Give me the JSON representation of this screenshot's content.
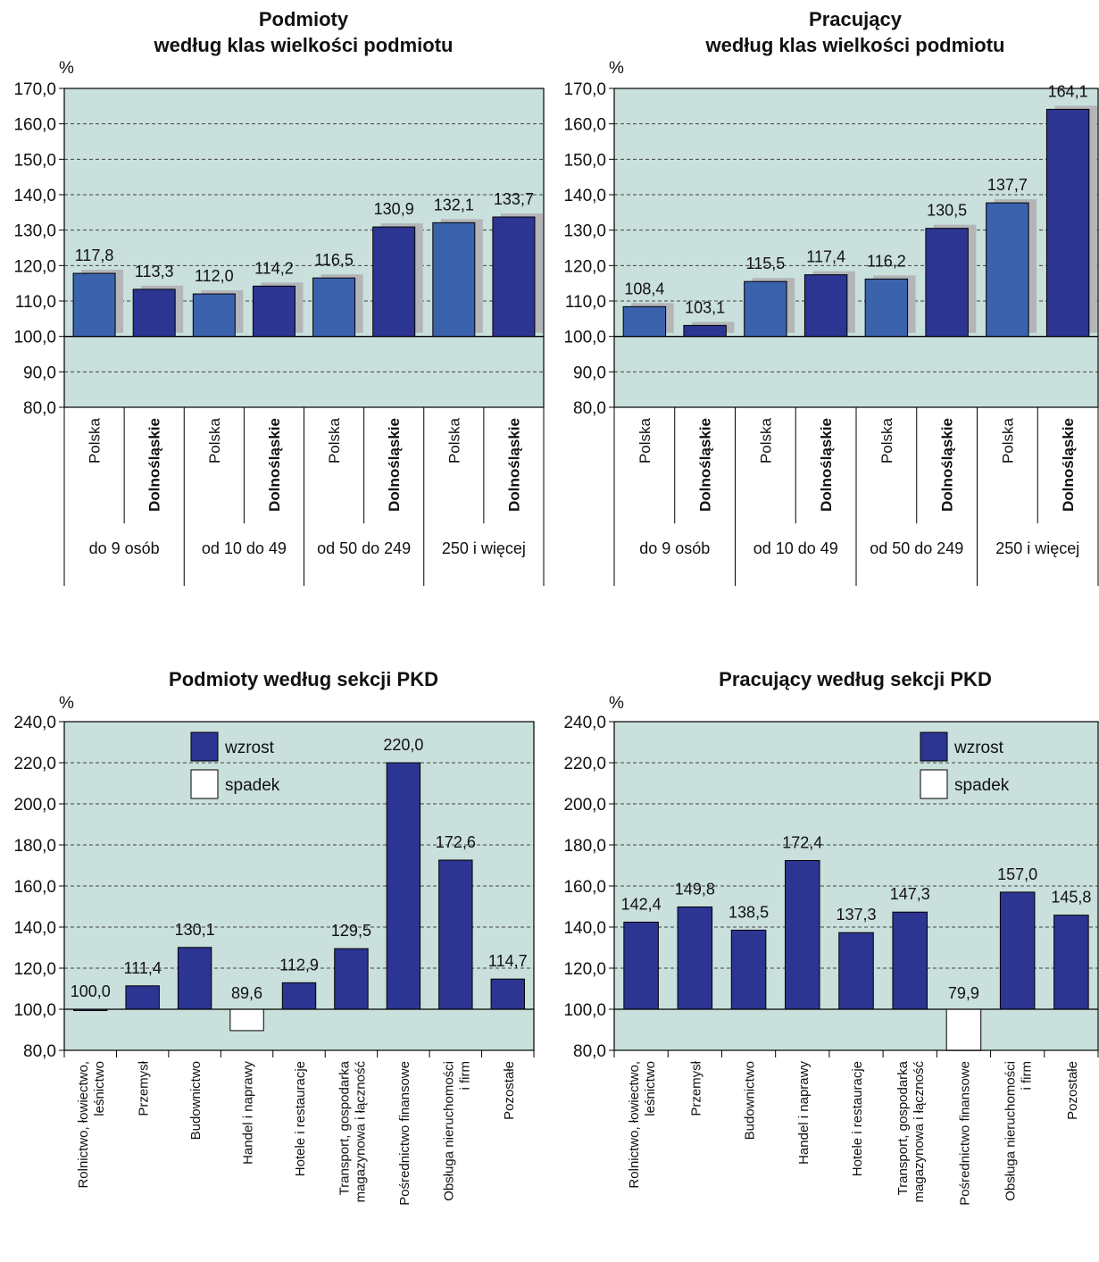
{
  "colors": {
    "panel": "#c9e0dc",
    "polska": "#3b62ad",
    "dolnoslaskie": "#2c3592",
    "shadow": "#b3b5b8",
    "spadek": "#ffffff"
  },
  "chart_data": [
    {
      "type": "bar",
      "title": [
        "Podmioty",
        "według klas wielkości podmiotu"
      ],
      "unit": "%",
      "ylim": [
        80,
        170
      ],
      "yticks": [
        "80,0",
        "90,0",
        "100,0",
        "110,0",
        "120,0",
        "130,0",
        "140,0",
        "150,0",
        "160,0",
        "170,0"
      ],
      "baseline": 100,
      "grid": true,
      "groups": [
        "do 9 osób",
        "od 10 do 49",
        "od 50 do 249",
        "250 i więcej"
      ],
      "series": [
        {
          "name": "Polska",
          "values": [
            117.8,
            112.0,
            116.5,
            132.1
          ],
          "labels": [
            "117,8",
            "112,0",
            "116,5",
            "132,1"
          ]
        },
        {
          "name": "Dolnośląskie",
          "values": [
            113.3,
            114.2,
            130.9,
            133.7
          ],
          "labels": [
            "113,3",
            "114,2",
            "130,9",
            "133,7"
          ]
        }
      ]
    },
    {
      "type": "bar",
      "title": [
        "Pracujący",
        "według klas wielkości podmiotu"
      ],
      "unit": "%",
      "ylim": [
        80,
        170
      ],
      "yticks": [
        "80,0",
        "90,0",
        "100,0",
        "110,0",
        "120,0",
        "130,0",
        "140,0",
        "150,0",
        "160,0",
        "170,0"
      ],
      "baseline": 100,
      "grid": true,
      "groups": [
        "do 9 osób",
        "od 10 do 49",
        "od 50 do 249",
        "250 i więcej"
      ],
      "series": [
        {
          "name": "Polska",
          "values": [
            108.4,
            115.5,
            116.2,
            137.7
          ],
          "labels": [
            "108,4",
            "115,5",
            "116,2",
            "137,7"
          ]
        },
        {
          "name": "Dolnośląskie",
          "values": [
            103.1,
            117.4,
            130.5,
            164.1
          ],
          "labels": [
            "103,1",
            "117,4",
            "130,5",
            "164,1"
          ]
        }
      ]
    },
    {
      "type": "bar",
      "title": [
        "Podmioty według sekcji PKD"
      ],
      "unit": "%",
      "ylim": [
        80,
        240
      ],
      "yticks": [
        "80,0",
        "100,0",
        "120,0",
        "140,0",
        "160,0",
        "180,0",
        "200,0",
        "220,0",
        "240,0"
      ],
      "baseline": 100,
      "grid": true,
      "legend": {
        "placement": "top-center",
        "items": [
          "wzrost",
          "spadek"
        ]
      },
      "categories": [
        [
          "Rolnictwo, łowiectwo,",
          "leśnictwo"
        ],
        [
          "Przemysł"
        ],
        [
          "Budownictwo"
        ],
        [
          "Handel i naprawy"
        ],
        [
          "Hotele i restauracje"
        ],
        [
          "Transport, gospodarka",
          "magazynowa i łączność"
        ],
        [
          "Pośrednictwo finansowe"
        ],
        [
          "Obsługa nieruchomości",
          "i firm"
        ],
        [
          "Pozostałe"
        ]
      ],
      "values": [
        100.0,
        111.4,
        130.1,
        89.6,
        112.9,
        129.5,
        220.0,
        172.6,
        114.7
      ],
      "labels": [
        "100,0",
        "111,4",
        "130,1",
        "89,6",
        "112,9",
        "129,5",
        "220,0",
        "172,6",
        "114,7"
      ]
    },
    {
      "type": "bar",
      "title": [
        "Pracujący według sekcji PKD"
      ],
      "unit": "%",
      "ylim": [
        80,
        240
      ],
      "yticks": [
        "80,0",
        "100,0",
        "120,0",
        "140,0",
        "160,0",
        "180,0",
        "200,0",
        "220,0",
        "240,0"
      ],
      "baseline": 100,
      "grid": true,
      "legend": {
        "placement": "top-right",
        "items": [
          "wzrost",
          "spadek"
        ]
      },
      "categories": [
        [
          "Rolnictwo, łowiectwo,",
          "leśnictwo"
        ],
        [
          "Przemysł"
        ],
        [
          "Budownictwo"
        ],
        [
          "Handel i naprawy"
        ],
        [
          "Hotele i restauracje"
        ],
        [
          "Transport, gospodarka",
          "magazynowa i łączność"
        ],
        [
          "Pośrednictwo finansowe"
        ],
        [
          "Obsługa nieruchomości",
          "i firm"
        ],
        [
          "Pozostałe"
        ]
      ],
      "values": [
        142.4,
        149.8,
        138.5,
        172.4,
        137.3,
        147.3,
        79.9,
        157.0,
        145.8
      ],
      "labels": [
        "142,4",
        "149,8",
        "138,5",
        "172,4",
        "137,3",
        "147,3",
        "79,9",
        "157,0",
        "145,8"
      ]
    }
  ]
}
